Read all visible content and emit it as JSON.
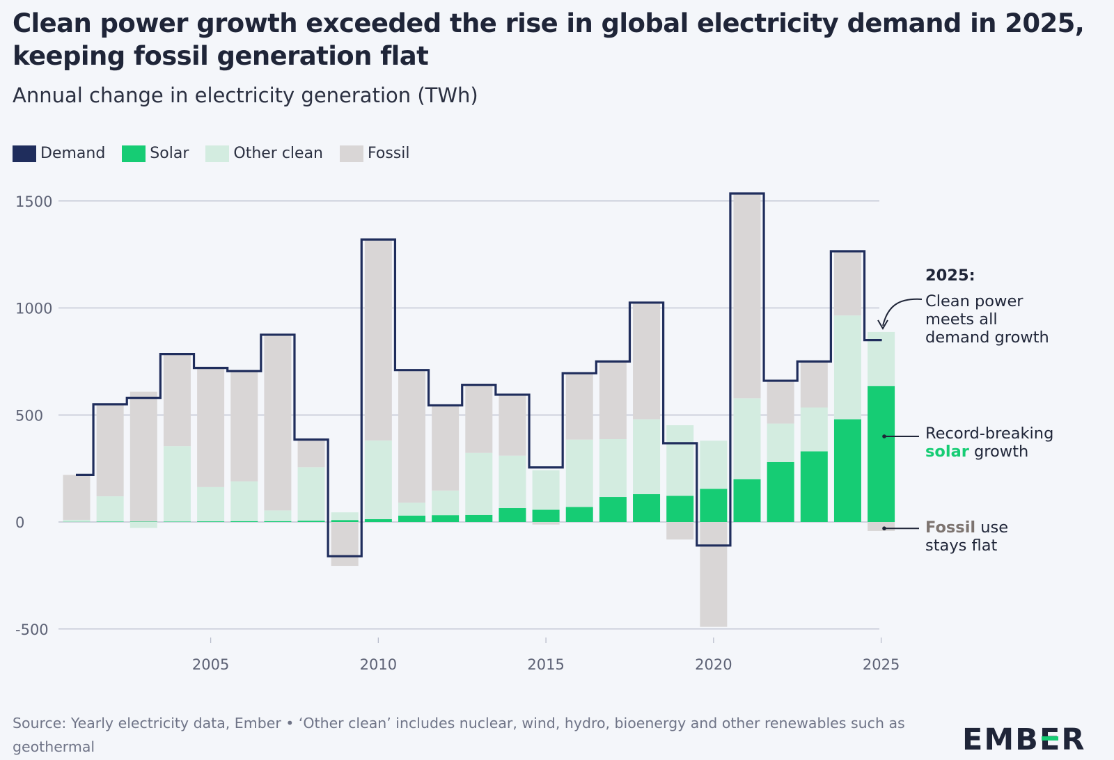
{
  "title": "Clean power growth exceeded the rise in global electricity demand in 2025, keeping fossil generation flat",
  "subtitle": "Annual change in electricity generation (TWh)",
  "legend": [
    {
      "label": "Demand",
      "color": "#1f2d5c"
    },
    {
      "label": "Solar",
      "color": "#16cc74"
    },
    {
      "label": "Other clean",
      "color": "#d3ece0"
    },
    {
      "label": "Fossil",
      "color": "#d9d6d6"
    }
  ],
  "annotations": {
    "a2025_heading": "2025:",
    "a2025_lines": [
      "Clean power",
      "meets all",
      "demand growth"
    ],
    "solar_line1": "Record-breaking",
    "solar_bold": "solar",
    "solar_rest": " growth",
    "fossil_bold": "Fossil",
    "fossil_rest": " use",
    "fossil_line2": "stays flat"
  },
  "footer": "Source: Yearly electricity data, Ember • ‘Other clean’ includes nuclear, wind, hydro, bioenergy and other renewables such as geothermal",
  "logo": {
    "pre": "EMB",
    "mark": "E",
    "post": "R"
  },
  "chart_data": {
    "type": "bar",
    "stacked": true,
    "x": [
      2001,
      2002,
      2003,
      2004,
      2005,
      2006,
      2007,
      2008,
      2009,
      2010,
      2011,
      2012,
      2013,
      2014,
      2015,
      2016,
      2017,
      2018,
      2019,
      2020,
      2021,
      2022,
      2023,
      2024,
      2025
    ],
    "xticks": [
      2005,
      2010,
      2015,
      2020,
      2025
    ],
    "yticks": [
      1500,
      1000,
      500,
      0,
      -500
    ],
    "ylim": [
      -500,
      1500
    ],
    "grid": true,
    "series": [
      {
        "name": "Solar",
        "color": "#16cc74",
        "values": [
          1,
          2,
          2,
          2,
          3,
          4,
          4,
          6,
          9,
          13,
          30,
          32,
          33,
          65,
          57,
          70,
          117,
          130,
          122,
          155,
          200,
          280,
          330,
          480,
          635
        ]
      },
      {
        "name": "Other clean",
        "color": "#d3ece0",
        "values": [
          9,
          118,
          -28,
          352,
          160,
          186,
          50,
          250,
          36,
          368,
          60,
          115,
          290,
          245,
          185,
          315,
          270,
          350,
          330,
          225,
          378,
          180,
          205,
          485,
          253
        ]
      },
      {
        "name": "Fossil",
        "color": "#d9d6d6",
        "values": [
          210,
          432,
          607,
          432,
          560,
          520,
          825,
          135,
          -205,
          940,
          620,
          398,
          318,
          282,
          -12,
          310,
          358,
          545,
          -82,
          -490,
          955,
          200,
          210,
          298,
          -42
        ]
      }
    ],
    "demand": {
      "name": "Demand",
      "color": "#1f2d5c",
      "values": [
        220,
        550,
        580,
        785,
        720,
        705,
        875,
        385,
        -160,
        1320,
        710,
        545,
        640,
        595,
        255,
        695,
        750,
        1025,
        368,
        -110,
        1535,
        660,
        750,
        1265,
        850
      ]
    }
  }
}
